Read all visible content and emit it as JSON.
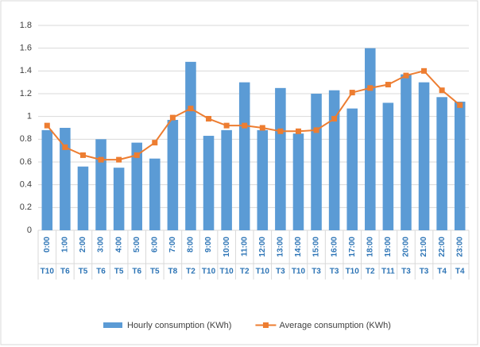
{
  "chart_data": {
    "type": "bar-line",
    "categories": [
      "0:00",
      "1:00",
      "2:00",
      "3:00",
      "4:00",
      "5:00",
      "6:00",
      "7:00",
      "8:00",
      "9:00",
      "10:00",
      "11:00",
      "12:00",
      "13:00",
      "14:00",
      "15:00",
      "16:00",
      "17:00",
      "18:00",
      "19:00",
      "20:00",
      "21:00",
      "22:00",
      "23:00"
    ],
    "secondary_categories": [
      "T10",
      "T6",
      "T5",
      "T6",
      "T5",
      "T6",
      "T5",
      "T8",
      "T2",
      "T10",
      "T10",
      "T2",
      "T10",
      "T3",
      "T10",
      "T3",
      "T3",
      "T10",
      "T2",
      "T11",
      "T3",
      "T3",
      "T4",
      "T4"
    ],
    "series": [
      {
        "name": "Hourly consumption (KWh)",
        "type": "bar",
        "color": "#5b9bd5",
        "values": [
          0.88,
          0.9,
          0.56,
          0.8,
          0.55,
          0.77,
          0.63,
          0.97,
          1.48,
          0.83,
          0.88,
          1.3,
          0.88,
          1.25,
          0.85,
          1.2,
          1.23,
          1.07,
          1.6,
          1.12,
          1.37,
          1.3,
          1.17,
          1.13
        ]
      },
      {
        "name": "Average consumption (KWh)",
        "type": "line",
        "color": "#ed7d31",
        "values": [
          0.92,
          0.73,
          0.66,
          0.62,
          0.62,
          0.66,
          0.77,
          0.99,
          1.07,
          0.98,
          0.92,
          0.92,
          0.9,
          0.87,
          0.87,
          0.88,
          0.98,
          1.21,
          1.25,
          1.28,
          1.36,
          1.4,
          1.23,
          1.1
        ]
      }
    ],
    "ylim": [
      0,
      1.8
    ],
    "yticks": [
      0,
      0.2,
      0.4,
      0.6,
      0.8,
      1,
      1.2,
      1.4,
      1.6,
      1.8
    ],
    "grid": true,
    "legend": "bottom"
  }
}
